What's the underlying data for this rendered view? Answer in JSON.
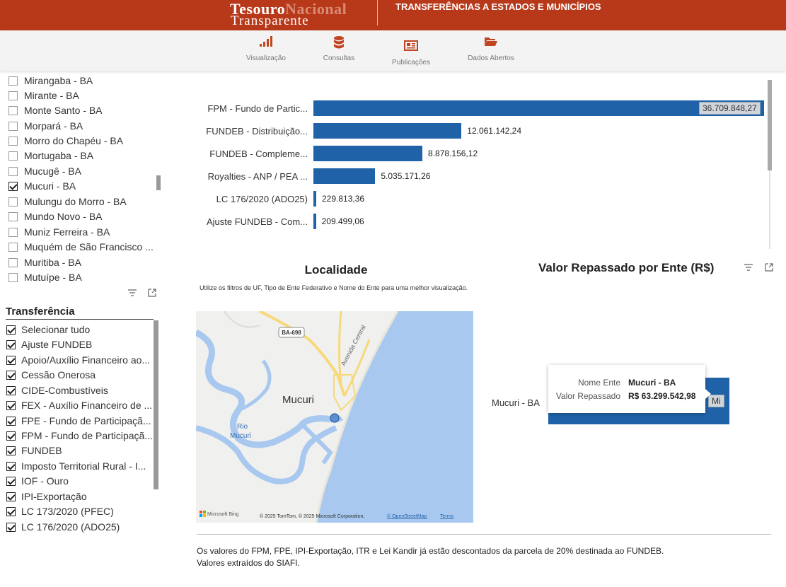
{
  "header": {
    "logo_line1_a": "Tesouro",
    "logo_line1_b": "Nacional",
    "logo_line2": "Transparente",
    "section_title": "TRANSFERÊNCIAS A ESTADOS E MUNICÍPIOS",
    "accent_color": "#b7391a"
  },
  "nav": {
    "items": [
      {
        "label": "Visualização",
        "icon": "bar-chart-icon"
      },
      {
        "label": "Consultas",
        "icon": "database-icon"
      },
      {
        "label": "Publicações",
        "icon": "newspaper-icon"
      },
      {
        "label": "Dados Abertos",
        "icon": "folder-open-icon"
      }
    ]
  },
  "municipio_slicer": {
    "items": [
      {
        "label": "Mirangaba - BA",
        "checked": false
      },
      {
        "label": "Mirante - BA",
        "checked": false
      },
      {
        "label": "Monte Santo - BA",
        "checked": false
      },
      {
        "label": "Morpará - BA",
        "checked": false
      },
      {
        "label": "Morro do Chapéu - BA",
        "checked": false
      },
      {
        "label": "Mortugaba - BA",
        "checked": false
      },
      {
        "label": "Mucugê - BA",
        "checked": false
      },
      {
        "label": "Mucuri - BA",
        "checked": true
      },
      {
        "label": "Mulungu do Morro - BA",
        "checked": false
      },
      {
        "label": "Mundo Novo - BA",
        "checked": false
      },
      {
        "label": "Muniz Ferreira - BA",
        "checked": false
      },
      {
        "label": "Muquém de São Francisco ...",
        "checked": false
      },
      {
        "label": "Muritiba - BA",
        "checked": false
      },
      {
        "label": "Mutuípe - BA",
        "checked": false
      }
    ]
  },
  "transferencia_slicer": {
    "title": "Transferência",
    "items": [
      {
        "label": "Selecionar tudo",
        "checked": true
      },
      {
        "label": "Ajuste FUNDEB",
        "checked": true
      },
      {
        "label": "Apoio/Auxílio Financeiro ao...",
        "checked": true
      },
      {
        "label": "Cessão Onerosa",
        "checked": true
      },
      {
        "label": "CIDE-Combustíveis",
        "checked": true
      },
      {
        "label": "FEX - Auxílio Financeiro de ...",
        "checked": true
      },
      {
        "label": "FPE - Fundo de Participaçã...",
        "checked": true
      },
      {
        "label": "FPM - Fundo de Participaçã...",
        "checked": true
      },
      {
        "label": "FUNDEB",
        "checked": true
      },
      {
        "label": "Imposto Territorial Rural - I...",
        "checked": true
      },
      {
        "label": "IOF - Ouro",
        "checked": true
      },
      {
        "label": "IPI-Exportação",
        "checked": true
      },
      {
        "label": "LC 173/2020 (PFEC)",
        "checked": true
      },
      {
        "label": "LC 176/2020 (ADO25)",
        "checked": true
      }
    ]
  },
  "chart_data": {
    "type": "bar",
    "orientation": "horizontal",
    "categories": [
      "FPM - Fundo de Partic...",
      "FUNDEB - Distribuição...",
      "FUNDEB - Compleme...",
      "Royalties - ANP / PEA ...",
      "LC 176/2020 (ADO25)",
      "Ajuste FUNDEB - Com..."
    ],
    "values": [
      36709848.27,
      12061142.24,
      8878156.12,
      5035171.26,
      229813.36,
      209499.06
    ],
    "value_labels": [
      "36.709.848,27",
      "12.061.142,24",
      "8.878.156,12",
      "5.035.171,26",
      "229.813,36",
      "209.499,06"
    ],
    "xlim": [
      0,
      36709848.27
    ],
    "bar_color": "#1f62a8"
  },
  "map": {
    "title": "Localidade",
    "subtitle": "Utilize os filtros de UF, Tipo de Ente Federativo e Nome do Ente para uma melhor visualização.",
    "city_label": "Mucuri",
    "river_label_1": "Rio",
    "river_label_2": "Mucuri",
    "road_label": "BA-698",
    "avenue_label": "Avenida Central",
    "bing_label": "Microsoft Bing",
    "copyright": "© 2025 TomTom, © 2025 Microsoft Corporation,",
    "osm_link": "© OpenStreetMap",
    "terms_link": "Terms"
  },
  "value_chart": {
    "title": "Valor Repassado por Ente (R$)",
    "category": "Mucuri - BA",
    "bar_label_partial": "Mi",
    "tooltip": {
      "key1": "Nome Ente",
      "val1": "Mucuri - BA",
      "key2": "Valor Repassado",
      "val2": "R$ 63.299.542,98"
    }
  },
  "footer": {
    "line1": "Os valores do FPM, FPE, IPI-Exportação, ITR e Lei Kandir já estão descontados da parcela de 20% destinada ao FUNDEB.",
    "line2": "Valores extraídos do SIAFI."
  }
}
